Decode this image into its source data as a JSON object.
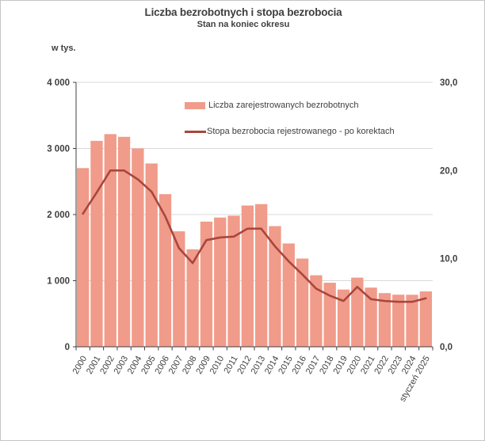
{
  "header": {
    "title": "Liczba bezrobotnych i stopa bezrobocia",
    "subtitle": "Stan na koniec okresu"
  },
  "axes": {
    "left_unit_label": "w tys.",
    "left_tick_labels": [
      "0",
      "1 000",
      "2 000",
      "3 000",
      "4 000"
    ],
    "right_tick_labels": [
      "0,0",
      "10,0",
      "20,0",
      "30,0"
    ]
  },
  "legend": {
    "bar_label": "Liczba zarejestrowanych bezrobotnych",
    "line_label": "Stopa bezrobocia rejestrowanego - po korektach"
  },
  "colors": {
    "bar_fill": "#f19b8a",
    "line_stroke": "#a9463e",
    "grid": "#d9d9d9",
    "axis": "#404040",
    "text": "#3f3f3f"
  },
  "chart_data": {
    "type": "bar",
    "combo": "bar+line",
    "title": "Liczba bezrobotnych i stopa bezrobocia",
    "subtitle": "Stan na koniec okresu",
    "categories": [
      "2000",
      "2001",
      "2002",
      "2003",
      "2004",
      "2005",
      "2006",
      "2007",
      "2008",
      "2009",
      "2010",
      "2011",
      "2012",
      "2013",
      "2014",
      "2015",
      "2016",
      "2017",
      "2018",
      "2019",
      "2020",
      "2021",
      "2022",
      "2023",
      "2024",
      "styczeń 2025"
    ],
    "series": [
      {
        "name": "Liczba zarejestrowanych bezrobotnych",
        "type": "bar",
        "axis": "left",
        "values": [
          2703,
          3115,
          3217,
          3176,
          3000,
          2773,
          2309,
          1747,
          1474,
          1893,
          1955,
          1983,
          2137,
          2158,
          1825,
          1563,
          1335,
          1082,
          969,
          866,
          1046,
          895,
          812,
          788,
          787,
          837
        ]
      },
      {
        "name": "Stopa bezrobocia rejestrowanego - po korektach",
        "type": "line",
        "axis": "right",
        "values": [
          15.1,
          17.5,
          20.0,
          20.0,
          19.0,
          17.6,
          14.8,
          11.2,
          9.5,
          12.1,
          12.4,
          12.5,
          13.4,
          13.4,
          11.4,
          9.7,
          8.2,
          6.6,
          5.8,
          5.2,
          6.8,
          5.4,
          5.2,
          5.1,
          5.1,
          5.5
        ]
      }
    ],
    "left_axis": {
      "label": "w tys.",
      "range": [
        0,
        4000
      ],
      "tick_step": 1000,
      "grid": true
    },
    "right_axis": {
      "range": [
        0,
        30
      ],
      "tick_step": 10,
      "grid": false
    },
    "legend_position": "inside-top-center"
  }
}
